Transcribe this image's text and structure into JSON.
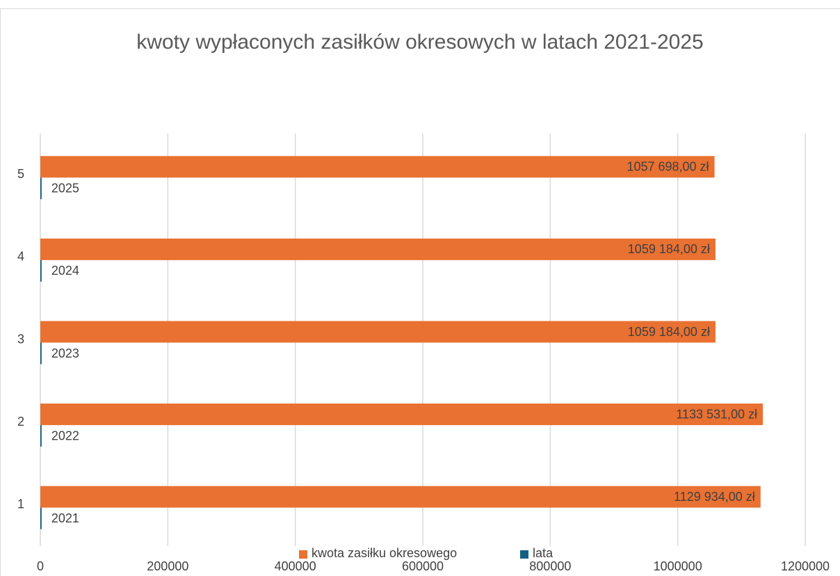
{
  "chart_data": {
    "type": "barh",
    "title": "kwoty wypłaconych zasiłków okresowych w latach 2021-2025",
    "categories": [
      1,
      2,
      3,
      4,
      5
    ],
    "series": [
      {
        "name": "kwota zasiłku okresowego",
        "color": "#e97132",
        "values": [
          1129934,
          1133531,
          1059184,
          1059184,
          1057698
        ],
        "value_labels": [
          "1129 934,00 zł",
          "1133 531,00 zł",
          "1059 184,00 zł",
          "1059 184,00 zł",
          "1057 698,00 zł"
        ]
      },
      {
        "name": "lata",
        "color": "#156082",
        "values": [
          2021,
          2022,
          2023,
          2024,
          2025
        ]
      }
    ],
    "xlim": [
      0,
      1200000
    ],
    "xticks": [
      0,
      200000,
      400000,
      600000,
      800000,
      1000000,
      1200000
    ],
    "grid": true,
    "legend": "bottom"
  }
}
